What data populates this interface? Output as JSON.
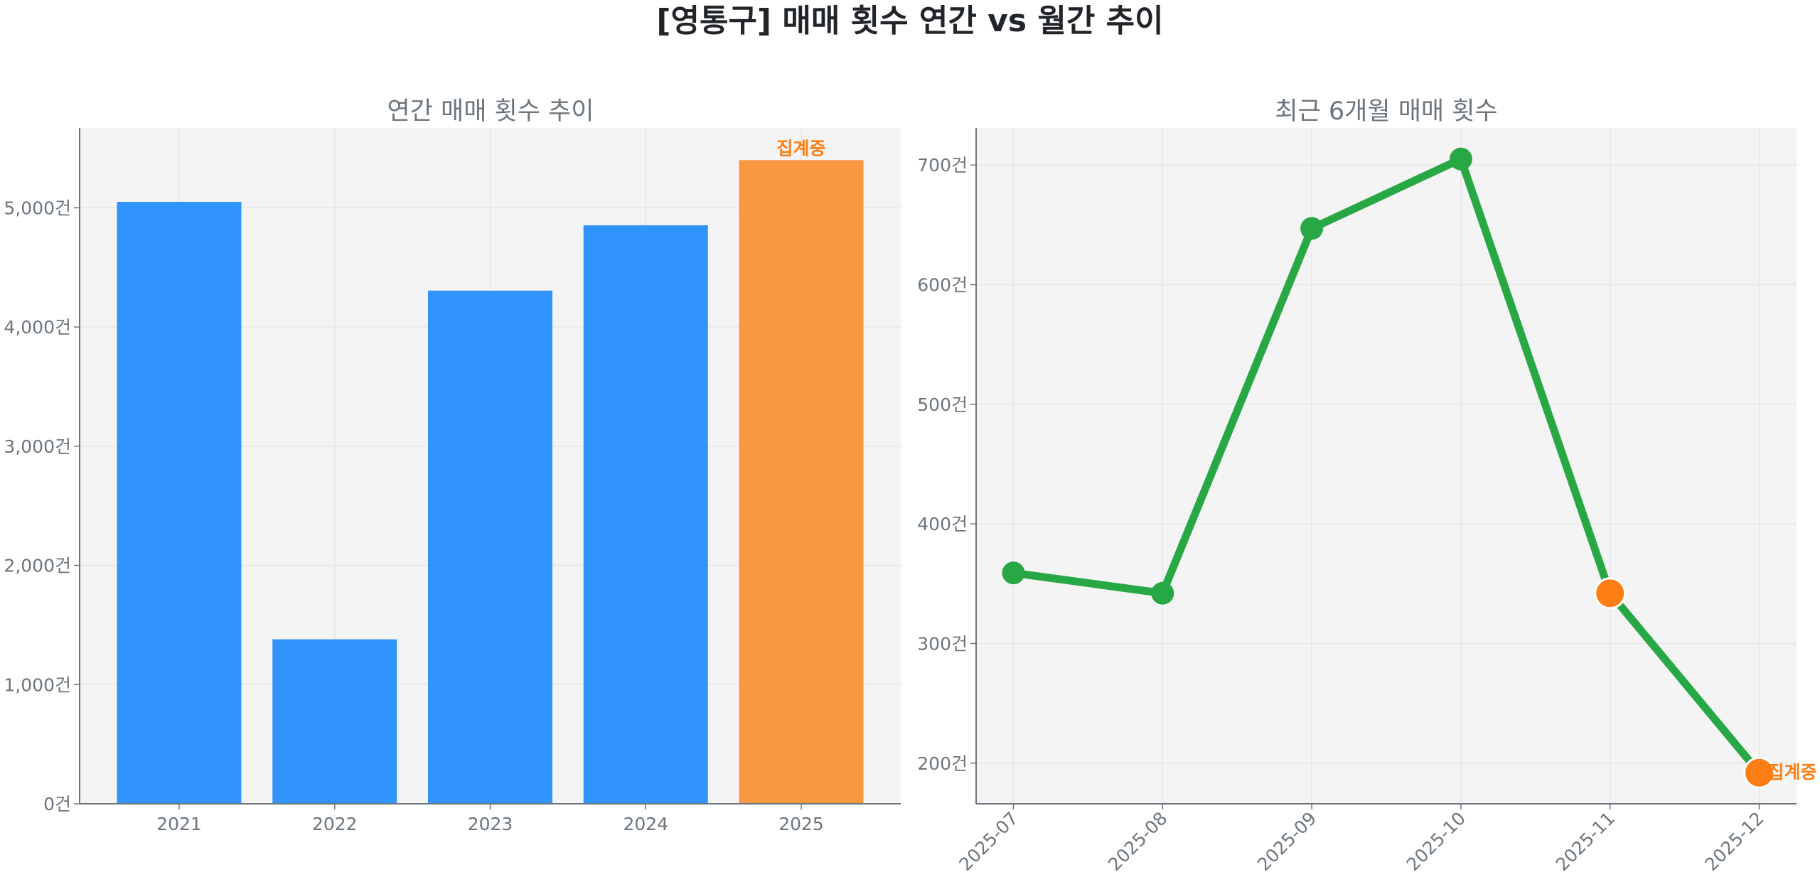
{
  "title": "[영통구] 매매 횟수 연간 vs 월간 추이",
  "chart_data": [
    {
      "type": "bar",
      "title": "연간 매매 횟수 추이",
      "categories": [
        "2021",
        "2022",
        "2023",
        "2024",
        "2025"
      ],
      "values": [
        5050,
        1380,
        4305,
        4853,
        5400
      ],
      "colors": [
        "#3193fc",
        "#3193fc",
        "#3193fc",
        "#3193fc",
        "#f99841"
      ],
      "annotation": {
        "category": "2025",
        "text": "집계중"
      },
      "ylim": [
        0,
        5670
      ],
      "yticks": [
        0,
        1000,
        2000,
        3000,
        4000,
        5000
      ],
      "ytick_labels": [
        "0건",
        "1,000건",
        "2,000건",
        "3,000건",
        "4,000건",
        "5,000건"
      ],
      "grid": true,
      "background": "#f4f4f4"
    },
    {
      "type": "line",
      "title": "최근 6개월 매매 횟수",
      "categories": [
        "2025-07",
        "2025-08",
        "2025-09",
        "2025-10",
        "2025-11",
        "2025-12"
      ],
      "values": [
        359,
        342,
        647,
        705,
        342,
        192
      ],
      "line_color": "#28a745",
      "marker_colors": [
        "#28a745",
        "#28a745",
        "#28a745",
        "#28a745",
        "#fd7e14",
        "#fd7e14"
      ],
      "annotation": {
        "category": "2025-12",
        "text": "집계중"
      },
      "ylim": [
        166,
        731
      ],
      "yticks": [
        200,
        300,
        400,
        500,
        600,
        700
      ],
      "ytick_labels": [
        "200건",
        "300건",
        "400건",
        "500건",
        "600건",
        "700건"
      ],
      "xtick_rotation": 45,
      "grid": true,
      "background": "#f4f4f4"
    }
  ]
}
